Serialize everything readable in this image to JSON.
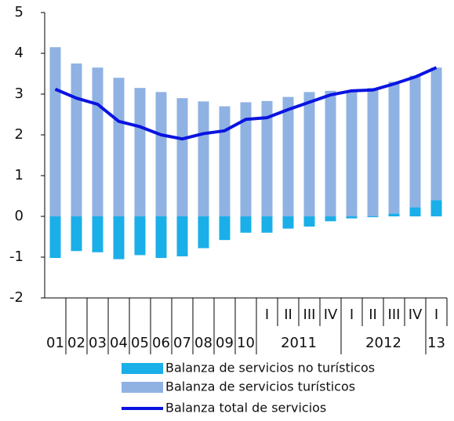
{
  "chart_data": {
    "type": "bar",
    "stacked": true,
    "categories": [
      "01",
      "02",
      "03",
      "04",
      "05",
      "06",
      "07",
      "08",
      "09",
      "10",
      "I",
      "II",
      "III",
      "IV",
      "I",
      "II",
      "III",
      "IV",
      "I"
    ],
    "groups": [
      {
        "label": "2011",
        "count": 4
      },
      {
        "label": "2012",
        "count": 4
      },
      {
        "label": "13",
        "count": 1
      }
    ],
    "series": [
      {
        "name": "Balanza de servicios no turísticos",
        "color": "#1aafe8",
        "values": [
          -1.02,
          -0.85,
          -0.88,
          -1.05,
          -0.95,
          -1.02,
          -0.98,
          -0.78,
          -0.58,
          -0.4,
          -0.4,
          -0.3,
          -0.25,
          -0.12,
          -0.05,
          -0.02,
          0.07,
          0.22,
          0.4
        ]
      },
      {
        "name": "Balanza de servicios turísticos",
        "color": "#8fb2e3",
        "values": [
          4.15,
          3.75,
          3.65,
          3.4,
          3.15,
          3.05,
          2.9,
          2.82,
          2.7,
          2.8,
          2.83,
          2.93,
          3.05,
          3.08,
          3.08,
          3.15,
          3.23,
          3.23,
          3.25
        ]
      },
      {
        "name": "Balanza total de servicios",
        "color": "#0a14e0",
        "type": "line",
        "values": [
          3.12,
          2.9,
          2.75,
          2.33,
          2.2,
          2.0,
          1.9,
          2.03,
          2.1,
          2.38,
          2.42,
          2.62,
          2.8,
          2.98,
          3.08,
          3.1,
          3.25,
          3.42,
          3.65
        ]
      }
    ],
    "ylim": [
      -2,
      5
    ],
    "yticks": [
      -2,
      -1,
      0,
      1,
      2,
      3,
      4,
      5
    ],
    "grid": false
  }
}
